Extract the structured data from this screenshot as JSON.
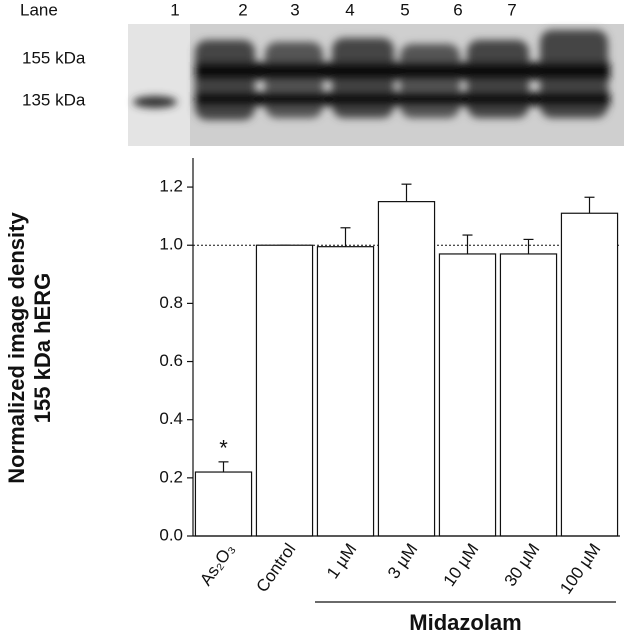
{
  "chart_data": {
    "type": "bar",
    "blot": {
      "lane_title": "Lane",
      "lanes": [
        "1",
        "2",
        "3",
        "4",
        "5",
        "6",
        "7"
      ],
      "band_labels": [
        "155 kDa",
        "135 kDa"
      ]
    },
    "y_label": [
      "Normalized image density",
      "155 kDa hERG"
    ],
    "categories": [
      "As₂O₃",
      "Control",
      "1 µM",
      "3 µM",
      "10 µM",
      "30 µM",
      "100 µM"
    ],
    "values": [
      0.22,
      1.0,
      0.995,
      1.15,
      0.97,
      0.97,
      1.11
    ],
    "errors": [
      0.035,
      0,
      0.065,
      0.06,
      0.065,
      0.05,
      0.055
    ],
    "color": "#ffffff",
    "annotations": [
      {
        "category": 0,
        "text": "*"
      }
    ],
    "reference_line": 1.0,
    "groups": [
      {
        "label": "Midazolam",
        "start": 2,
        "end": 6
      }
    ],
    "ylim": [
      0,
      1.3
    ],
    "yticks": [
      {
        "value": 0,
        "label": "0.0"
      },
      {
        "value": 0.2,
        "label": "0.2"
      },
      {
        "value": 0.4,
        "label": "0.4"
      },
      {
        "value": 0.6,
        "label": "0.6"
      },
      {
        "value": 0.8,
        "label": "0.8"
      },
      {
        "value": 1.0,
        "label": "1.0"
      },
      {
        "value": 1.2,
        "label": "1.2"
      }
    ]
  }
}
